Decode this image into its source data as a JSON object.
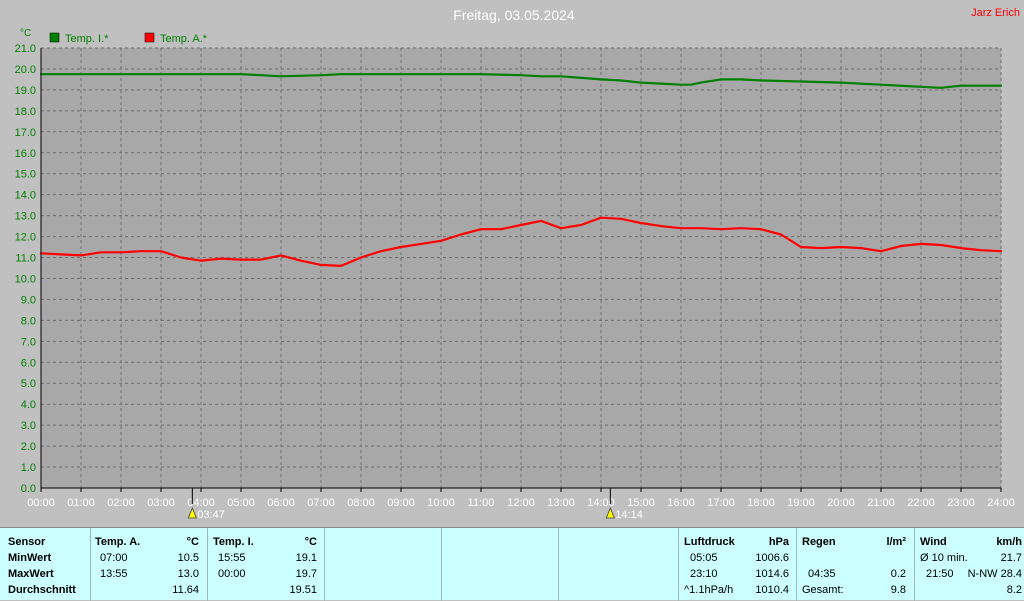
{
  "header": {
    "title": "Freitag, 03.05.2024",
    "author": "Jarz Erich"
  },
  "chart_data": {
    "type": "line",
    "ylabel": "°C",
    "ylim": [
      0,
      21
    ],
    "ytick_labels": [
      "0.0",
      "1.0",
      "2.0",
      "3.0",
      "4.0",
      "5.0",
      "6.0",
      "7.0",
      "8.0",
      "9.0",
      "10.0",
      "11.0",
      "12.0",
      "13.0",
      "14.0",
      "15.0",
      "16.0",
      "17.0",
      "18.0",
      "19.0",
      "20.0",
      "21.0"
    ],
    "xlim": [
      0,
      24
    ],
    "xtick_labels": [
      "00:00",
      "01:00",
      "02:00",
      "03:00",
      "04:00",
      "05:00",
      "06:00",
      "07:00",
      "08:00",
      "09:00",
      "10:00",
      "11:00",
      "12:00",
      "13:00",
      "14:00",
      "15:00",
      "16:00",
      "17:00",
      "18:00",
      "19:00",
      "20:00",
      "21:00",
      "22:00",
      "23:00",
      "24:00"
    ],
    "grid": true,
    "legend_position": "top-left",
    "series": [
      {
        "name": "Temp. I.*",
        "color": "#008000",
        "x": [
          0,
          1,
          2,
          3,
          4,
          5,
          5.5,
          6,
          7,
          7.5,
          8,
          9,
          10,
          11,
          12,
          12.5,
          13,
          14,
          14.5,
          15,
          15.5,
          16,
          16.25,
          16.5,
          17,
          17.5,
          18,
          19,
          20,
          21,
          22,
          22.5,
          23,
          24
        ],
        "y": [
          19.75,
          19.75,
          19.75,
          19.75,
          19.75,
          19.75,
          19.7,
          19.65,
          19.7,
          19.75,
          19.75,
          19.75,
          19.75,
          19.75,
          19.7,
          19.65,
          19.65,
          19.5,
          19.45,
          19.35,
          19.3,
          19.25,
          19.25,
          19.35,
          19.5,
          19.5,
          19.45,
          19.4,
          19.35,
          19.25,
          19.15,
          19.1,
          19.2,
          19.2
        ]
      },
      {
        "name": "Temp. A.*",
        "color": "#ff0000",
        "x": [
          0,
          0.5,
          1,
          1.5,
          2,
          2.5,
          3,
          3.5,
          4,
          4.5,
          5,
          5.5,
          6,
          6.5,
          7,
          7.5,
          8,
          8.5,
          9,
          9.5,
          10,
          10.5,
          11,
          11.5,
          12,
          12.5,
          13,
          13.5,
          14,
          14.5,
          15,
          15.5,
          16,
          16.5,
          17,
          17.5,
          18,
          18.5,
          19,
          19.5,
          20,
          20.5,
          21,
          21.5,
          22,
          22.5,
          23,
          23.5,
          24
        ],
        "y": [
          11.2,
          11.15,
          11.1,
          11.25,
          11.25,
          11.3,
          11.3,
          11.0,
          10.85,
          10.95,
          10.9,
          10.9,
          11.1,
          10.85,
          10.65,
          10.6,
          11.0,
          11.3,
          11.5,
          11.65,
          11.8,
          12.1,
          12.35,
          12.35,
          12.55,
          12.75,
          12.4,
          12.55,
          12.9,
          12.85,
          12.65,
          12.5,
          12.4,
          12.4,
          12.35,
          12.4,
          12.35,
          12.1,
          11.5,
          11.45,
          11.5,
          11.45,
          11.3,
          11.55,
          11.65,
          11.6,
          11.45,
          11.35,
          11.3
        ]
      }
    ],
    "markers": [
      {
        "label": "03:47",
        "x": 3.783
      },
      {
        "label": "14:14",
        "x": 14.233
      }
    ]
  },
  "table": {
    "sensor_header": "Sensor",
    "row_labels": [
      "MinWert",
      "MaxWert",
      "Durchschnitt"
    ],
    "temp_a": {
      "header": "Temp. A.",
      "unit": "°C",
      "min_time": "07:00",
      "min_value": "10.5",
      "max_time": "13:55",
      "max_value": "13.0",
      "avg": "11.64"
    },
    "temp_i": {
      "header": "Temp. I.",
      "unit": "°C",
      "min_time": "15:55",
      "min_value": "19.1",
      "max_time": "00:00",
      "max_value": "19.7",
      "avg": "19.51"
    },
    "pressure": {
      "header": "Luftdruck",
      "unit": "hPa",
      "min_time": "05:05",
      "min_value": "1006.6",
      "max_time": "23:10",
      "max_value": "1014.6",
      "trend": "^1.1hPa/h",
      "current": "1010.4"
    },
    "rain": {
      "header": "Regen",
      "unit": "l/m²",
      "time": "04:35",
      "value": "0.2",
      "total_label": "Gesamt:",
      "total": "9.8"
    },
    "wind": {
      "header": "Wind",
      "unit": "km/h",
      "avg_label": "Ø 10 min.",
      "avg_value": "21.7",
      "gust_time": "21:50",
      "gust_dir_value": "N-NW 28.4",
      "last_value": "8.2"
    }
  }
}
